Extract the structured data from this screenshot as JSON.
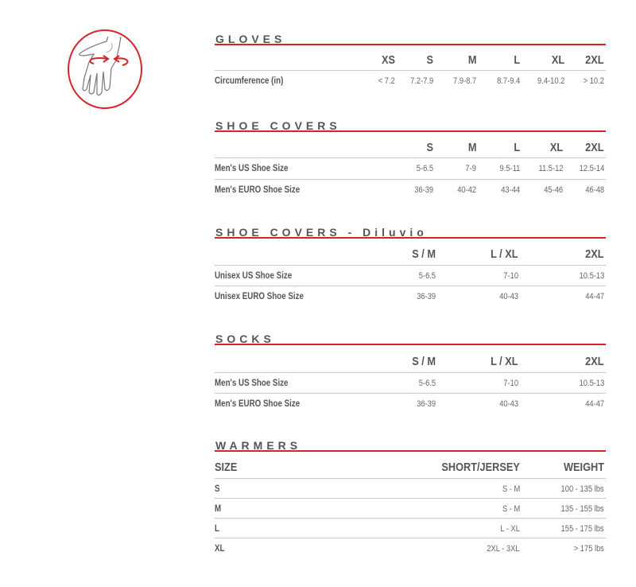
{
  "accent_color": "#d9222a",
  "icon": "hand-wrist-measure-icon",
  "sections": [
    {
      "title": "GLOVES",
      "header": [
        "",
        "XS",
        "S",
        "M",
        "L",
        "XL",
        "2XL"
      ],
      "rows": [
        [
          "Circumference (in)",
          "< 7.2",
          "7.2-7.9",
          "7.9-8.7",
          "8.7-9.4",
          "9.4-10.2",
          "> 10.2"
        ]
      ]
    },
    {
      "title": "SHOE COVERS",
      "header": [
        "",
        "S",
        "M",
        "L",
        "XL",
        "2XL"
      ],
      "rows": [
        [
          "Men's US Shoe Size",
          "5-6.5",
          "7-9",
          "9.5-11",
          "11.5-12",
          "12.5-14"
        ],
        [
          "Men's EURO Shoe Size",
          "36-39",
          "40-42",
          "43-44",
          "45-46",
          "46-48"
        ]
      ]
    },
    {
      "title": "SHOE COVERS - Diluvio",
      "header": [
        "",
        "S / M",
        "L / XL",
        "2XL"
      ],
      "rows": [
        [
          "Unisex US Shoe Size",
          "5-6.5",
          "7-10",
          "10.5-13"
        ],
        [
          "Unisex EURO Shoe Size",
          "36-39",
          "40-43",
          "44-47"
        ]
      ]
    },
    {
      "title": "SOCKS",
      "header": [
        "",
        "S / M",
        "L / XL",
        "2XL"
      ],
      "rows": [
        [
          "Men's US Shoe Size",
          "5-6.5",
          "7-10",
          "10.5-13"
        ],
        [
          "Men's EURO Shoe Size",
          "36-39",
          "40-43",
          "44-47"
        ]
      ]
    },
    {
      "title": "WARMERS",
      "header": [
        "SIZE",
        "SHORT/JERSEY",
        "WEIGHT"
      ],
      "rows": [
        [
          "S",
          "S - M",
          "100 - 135 lbs"
        ],
        [
          "M",
          "S - M",
          "135 - 155 lbs"
        ],
        [
          "L",
          "L - XL",
          "155 - 175 lbs"
        ],
        [
          "XL",
          "2XL - 3XL",
          "> 175 lbs"
        ]
      ]
    }
  ]
}
